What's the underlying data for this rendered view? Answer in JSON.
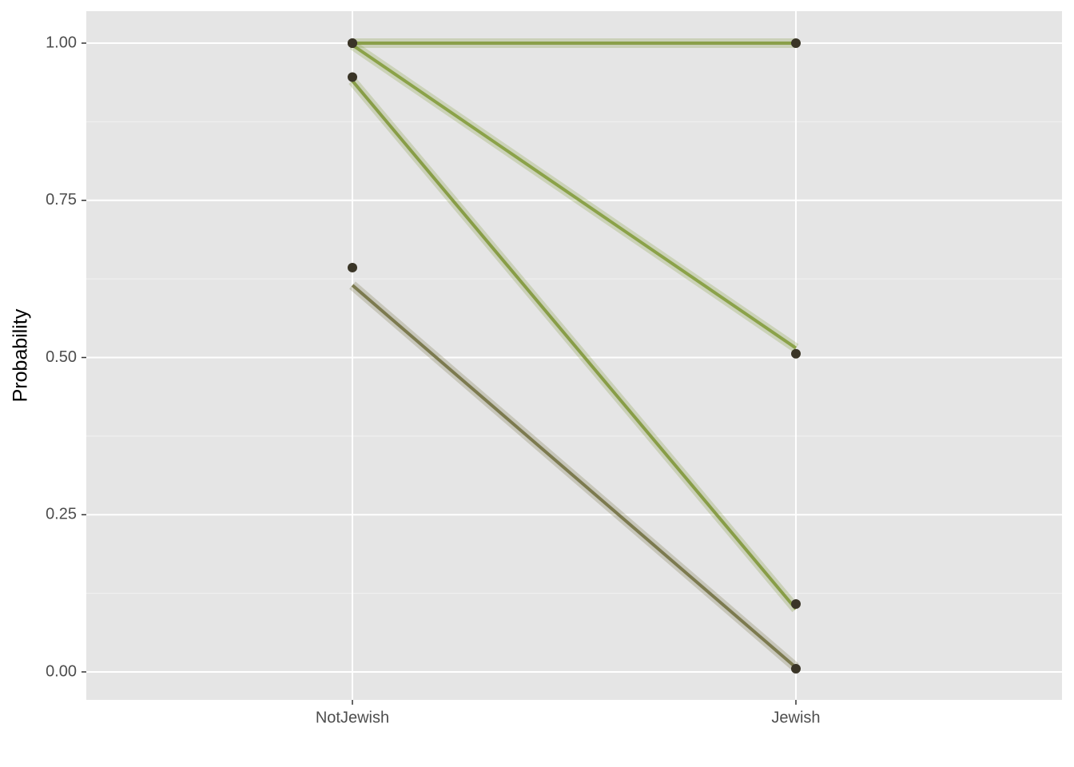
{
  "chart_data": {
    "type": "line",
    "y_label": "Probability",
    "categories": [
      "NotJewish",
      "Jewish"
    ],
    "lines": [
      {
        "color": "#7d9433",
        "values": [
          1.0,
          1.0
        ]
      },
      {
        "color": "#809a35",
        "values": [
          0.997,
          0.515
        ]
      },
      {
        "color": "#7d9433",
        "values": [
          0.94,
          0.1
        ]
      },
      {
        "color": "#6e6c3c",
        "values": [
          0.615,
          0.007
        ]
      }
    ],
    "points": {
      "color": "#3a3527",
      "series": [
        {
          "values": [
            1.0,
            1.0
          ]
        },
        {
          "values": [
            1.0,
            0.506
          ]
        },
        {
          "values": [
            0.946,
            0.108
          ]
        },
        {
          "values": [
            0.643,
            0.005
          ]
        }
      ]
    },
    "ylim": [
      -0.0445,
      1.0508
    ],
    "yticks": [
      {
        "value": 0,
        "label": "0.00"
      },
      {
        "value": 0.25,
        "label": "0.25"
      },
      {
        "value": 0.5,
        "label": "0.50"
      },
      {
        "value": 0.75,
        "label": "0.75"
      },
      {
        "value": 1,
        "label": "1.00"
      }
    ],
    "grid": true
  }
}
